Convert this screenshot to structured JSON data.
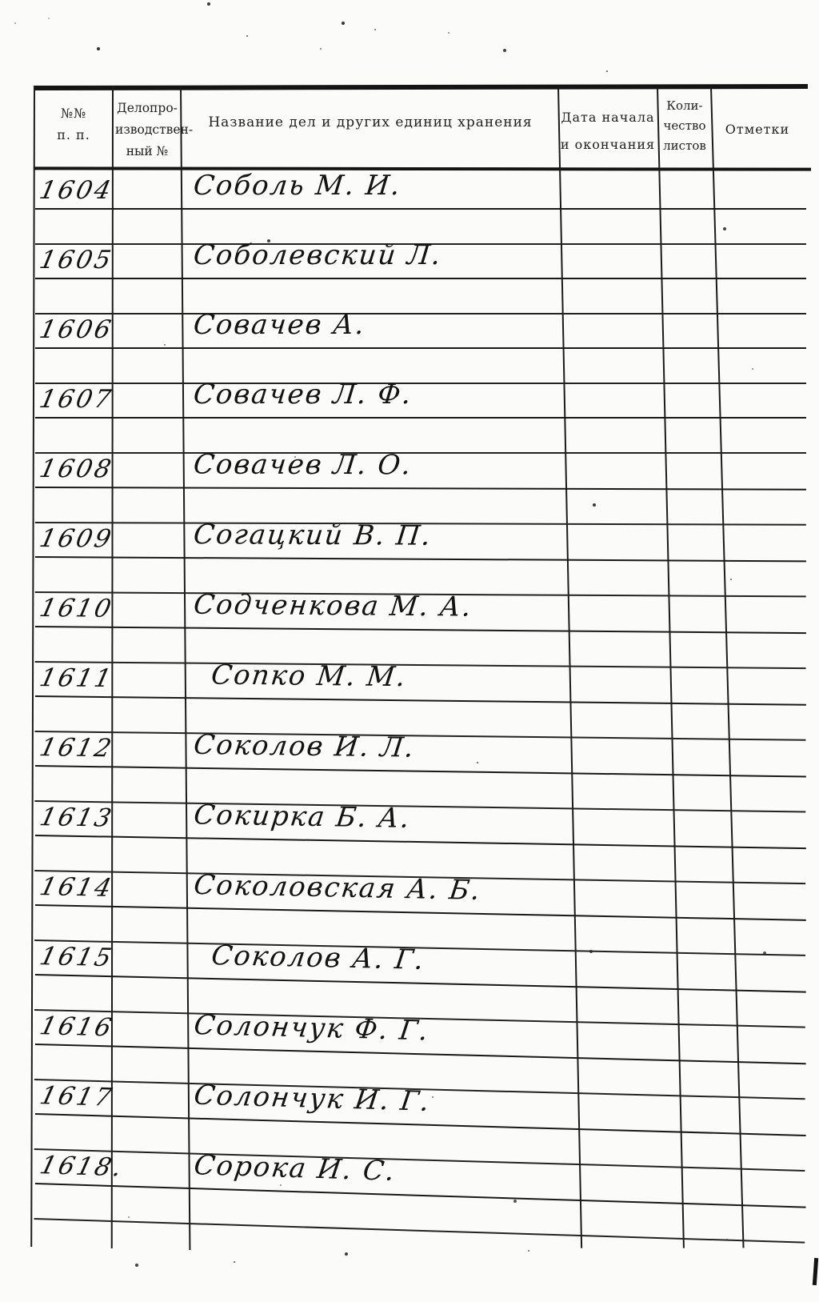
{
  "document": {
    "kind": "archival inventory register page (scanned)",
    "language": "ru"
  },
  "colors": {
    "paper": "#fbfbf9",
    "ink": "#141414",
    "rule": "#1b1b1b"
  },
  "table": {
    "headers": {
      "col1": [
        "№№",
        "п. п."
      ],
      "col2": [
        "Делопро-",
        "изводствен-",
        "ный  №"
      ],
      "col3": "Название дел и других единиц хранения",
      "col4": [
        "Дата начала",
        "и окончания"
      ],
      "col5": [
        "Коли-",
        "чество",
        "листов"
      ],
      "col6": "Отметки"
    },
    "rows": [
      {
        "num": "1604",
        "title": "Соболь М. И.",
        "filing_no": "",
        "date": "",
        "sheets": "",
        "notes": ""
      },
      {
        "num": "1605",
        "title": "Соболевский Л.",
        "filing_no": "",
        "date": "",
        "sheets": "",
        "notes": ""
      },
      {
        "num": "1606",
        "title": "Совачев А.",
        "filing_no": "",
        "date": "",
        "sheets": "",
        "notes": ""
      },
      {
        "num": "1607",
        "title": "Совачев Л. Ф.",
        "filing_no": "",
        "date": "",
        "sheets": "",
        "notes": ""
      },
      {
        "num": "1608",
        "title": "Совачев Л. О.",
        "filing_no": "",
        "date": "",
        "sheets": "",
        "notes": ""
      },
      {
        "num": "1609",
        "title": "Согацкий В. П.",
        "filing_no": "",
        "date": "",
        "sheets": "",
        "notes": ""
      },
      {
        "num": "1610",
        "title": "Содченкова М. А.",
        "filing_no": "",
        "date": "",
        "sheets": "",
        "notes": ""
      },
      {
        "num": "1611",
        "title": "Сопко М. М.",
        "filing_no": "",
        "date": "",
        "sheets": "",
        "notes": ""
      },
      {
        "num": "1612",
        "title": "Соколов И. Л.",
        "filing_no": "",
        "date": "",
        "sheets": "",
        "notes": ""
      },
      {
        "num": "1613",
        "title": "Сокирка Б. А.",
        "filing_no": "",
        "date": "",
        "sheets": "",
        "notes": ""
      },
      {
        "num": "1614",
        "title": "Соколовская А. Б.",
        "filing_no": "",
        "date": "",
        "sheets": "",
        "notes": ""
      },
      {
        "num": "1615",
        "title": "Соколов А. Г.",
        "filing_no": "",
        "date": "",
        "sheets": "",
        "notes": ""
      },
      {
        "num": "1616",
        "title": "Солончук Ф. Г.",
        "filing_no": "",
        "date": "",
        "sheets": "",
        "notes": ""
      },
      {
        "num": "1617",
        "title": "Солончук И. Г.",
        "filing_no": "",
        "date": "",
        "sheets": "",
        "notes": ""
      },
      {
        "num": "1618.",
        "title": "Сорока И. С.",
        "filing_no": "",
        "date": "",
        "sheets": "",
        "notes": ""
      }
    ]
  }
}
